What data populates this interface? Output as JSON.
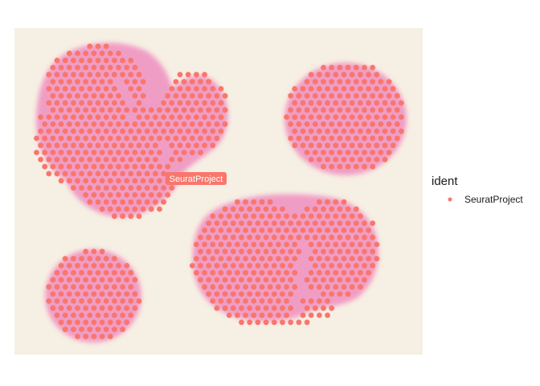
{
  "chart_data": {
    "type": "scatter",
    "description_visible": "spatial spot plot over tissue image",
    "series": [
      {
        "name": "SeuratProject",
        "color": "#F8766D"
      }
    ],
    "cluster_label": "SeuratProject",
    "legend": {
      "title": "ident",
      "placement": "right",
      "items": [
        "SeuratProject"
      ]
    },
    "grid": false,
    "colors": {
      "spot": "#F8766D",
      "tissue": "#f08fc0",
      "tissue_dark": "#e870b0",
      "background_image": "#f6efe3",
      "label_bg": "#F8766D"
    }
  }
}
